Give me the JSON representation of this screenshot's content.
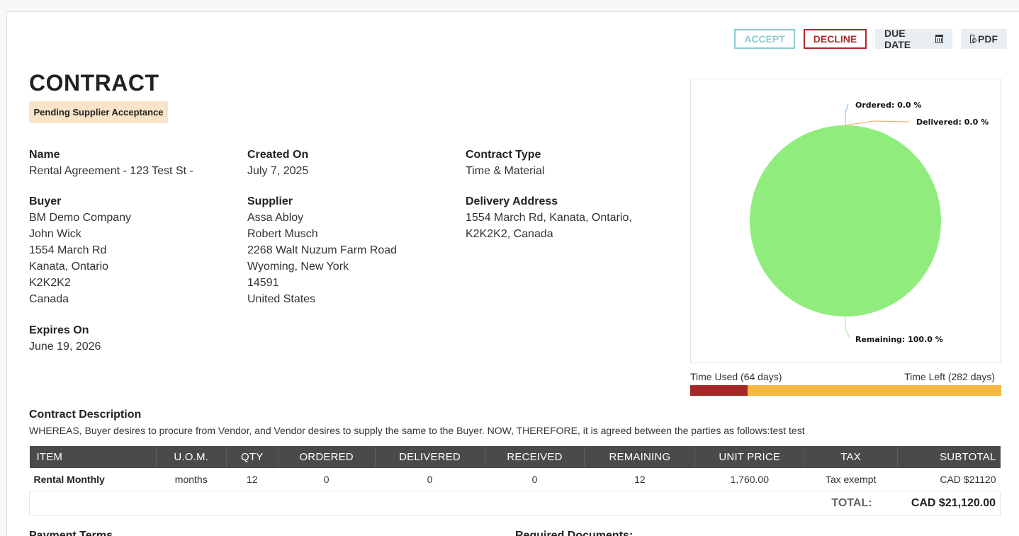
{
  "actions": {
    "accept": "ACCEPT",
    "decline": "DECLINE",
    "due_date": "DUE DATE",
    "pdf": "PDF"
  },
  "header": {
    "title": "CONTRACT",
    "status": "Pending Supplier Acceptance"
  },
  "fields": {
    "name": {
      "label": "Name",
      "value": "Rental Agreement - 123 Test St -"
    },
    "created_on": {
      "label": "Created On",
      "value": "July 7, 2025"
    },
    "contract_type": {
      "label": "Contract Type",
      "value": "Time & Material"
    },
    "buyer": {
      "label": "Buyer",
      "lines": [
        "BM Demo Company",
        "John Wick",
        "1554 March Rd",
        "Kanata, Ontario",
        "K2K2K2",
        "Canada"
      ]
    },
    "supplier": {
      "label": "Supplier",
      "lines": [
        "Assa Abloy",
        "Robert Musch",
        "2268 Walt Nuzum Farm Road",
        "Wyoming, New York",
        "14591",
        "United States"
      ]
    },
    "delivery_address": {
      "label": "Delivery Address",
      "lines": [
        "1554 March Rd, Kanata, Ontario,",
        "K2K2K2, Canada"
      ]
    },
    "expires_on": {
      "label": "Expires On",
      "value": "June 19, 2026"
    }
  },
  "chart_data": {
    "type": "pie",
    "title": "",
    "slices": [
      {
        "label": "Ordered: 0.0 %",
        "name": "Ordered",
        "value": 0.0,
        "color": "#7cb5ec"
      },
      {
        "label": "Delivered: 0.0 %",
        "name": "Delivered",
        "value": 0.0,
        "color": "#f7a35c"
      },
      {
        "label": "Remaining: 100.0 %",
        "name": "Remaining",
        "value": 100.0,
        "color": "#90ed7d"
      }
    ]
  },
  "timeline": {
    "used_label": "Time Used (64 days)",
    "left_label": "Time Left (282 days)",
    "used_days": 64,
    "left_days": 282,
    "used_color": "#a52828",
    "left_color": "#f5b841"
  },
  "description": {
    "label": "Contract Description",
    "text": "WHEREAS, Buyer desires to procure from Vendor, and Vendor desires to supply the same to the Buyer. NOW, THEREFORE, it is agreed between the parties as follows:test test"
  },
  "items_table": {
    "columns": [
      "ITEM",
      "U.O.M.",
      "QTY",
      "ORDERED",
      "DELIVERED",
      "RECEIVED",
      "REMAINING",
      "UNIT PRICE",
      "TAX",
      "SUBTOTAL"
    ],
    "rows": [
      [
        "Rental Monthly",
        "months",
        "12",
        "0",
        "0",
        "0",
        "12",
        "1,760.00",
        "Tax exempt",
        "CAD $21120"
      ]
    ],
    "total_label": "TOTAL:",
    "total_value": "CAD $21,120.00"
  },
  "footer_partial": {
    "left": "Payment Terms",
    "right": "Required Documents:"
  }
}
